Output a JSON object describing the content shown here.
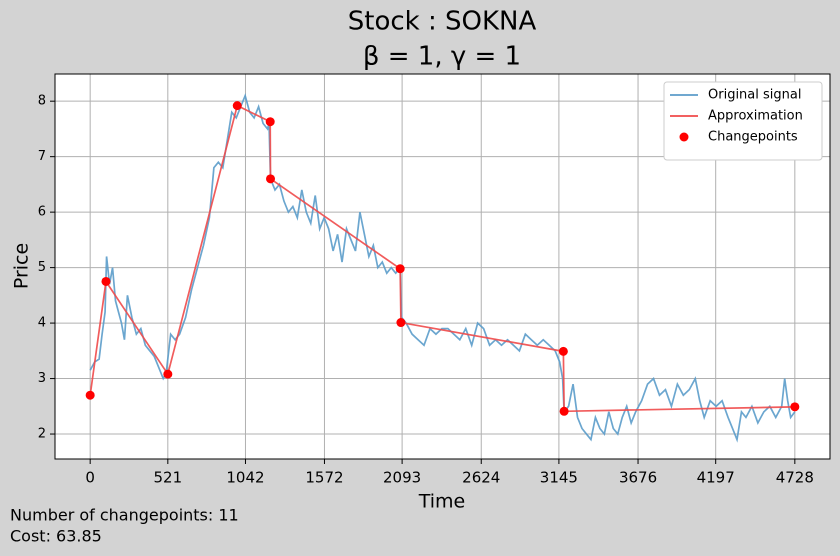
{
  "chart_data": {
    "type": "line",
    "title": "Stock : SOKNA",
    "subtitle": "β = 1, γ = 1",
    "x_label": "Time",
    "y_label": "Price",
    "annotations": [
      "Number of changepoints: 11",
      "Cost: 63.85"
    ],
    "xlim": [
      -236,
      4964
    ],
    "ylim": [
      1.55,
      8.49
    ],
    "xticks": [
      0,
      521,
      1042,
      1572,
      2093,
      2624,
      3145,
      3676,
      4197,
      4728
    ],
    "yticks": [
      2,
      3,
      4,
      5,
      6,
      7,
      8
    ],
    "grid": true,
    "legend": "upper right",
    "series": [
      {
        "name": "Original signal",
        "color": "#5b9cca",
        "style": "line",
        "x": [
          0,
          30,
          60,
          80,
          100,
          110,
          130,
          150,
          170,
          190,
          210,
          230,
          250,
          280,
          310,
          340,
          370,
          400,
          430,
          460,
          490,
          510,
          540,
          570,
          600,
          640,
          680,
          720,
          760,
          800,
          830,
          860,
          890,
          920,
          950,
          980,
          1010,
          1040,
          1070,
          1100,
          1130,
          1160,
          1190,
          1200,
          1210,
          1240,
          1270,
          1300,
          1330,
          1360,
          1390,
          1420,
          1450,
          1480,
          1510,
          1540,
          1570,
          1600,
          1630,
          1660,
          1690,
          1720,
          1750,
          1780,
          1810,
          1840,
          1870,
          1900,
          1930,
          1960,
          1990,
          2020,
          2050,
          2080,
          2090,
          2120,
          2160,
          2200,
          2240,
          2280,
          2320,
          2360,
          2400,
          2440,
          2480,
          2520,
          2560,
          2600,
          2640,
          2680,
          2720,
          2760,
          2800,
          2840,
          2880,
          2920,
          2960,
          3000,
          3040,
          3080,
          3120,
          3150,
          3170,
          3180,
          3210,
          3240,
          3270,
          3300,
          3330,
          3360,
          3390,
          3420,
          3450,
          3480,
          3510,
          3540,
          3570,
          3600,
          3630,
          3660,
          3700,
          3740,
          3780,
          3820,
          3860,
          3900,
          3940,
          3980,
          4020,
          4060,
          4090,
          4120,
          4160,
          4200,
          4240,
          4280,
          4310,
          4340,
          4370,
          4400,
          4440,
          4480,
          4520,
          4560,
          4600,
          4640,
          4660,
          4680,
          4700,
          4728
        ],
        "values": [
          3.15,
          3.3,
          3.35,
          3.8,
          4.2,
          5.2,
          4.7,
          5.0,
          4.4,
          4.2,
          4.0,
          3.7,
          4.5,
          4.1,
          3.8,
          3.9,
          3.6,
          3.5,
          3.4,
          3.2,
          3.0,
          3.1,
          3.8,
          3.7,
          3.8,
          4.1,
          4.6,
          5.0,
          5.4,
          5.9,
          6.8,
          6.9,
          6.8,
          7.3,
          7.8,
          7.7,
          7.9,
          8.1,
          7.8,
          7.7,
          7.9,
          7.6,
          7.5,
          7.6,
          6.6,
          6.4,
          6.5,
          6.2,
          6.0,
          6.1,
          5.9,
          6.4,
          6.0,
          5.8,
          6.3,
          5.7,
          5.9,
          5.7,
          5.3,
          5.6,
          5.1,
          5.7,
          5.5,
          5.3,
          6.0,
          5.6,
          5.2,
          5.4,
          5.0,
          5.1,
          4.9,
          5.0,
          4.9,
          5.0,
          4.1,
          4.0,
          3.8,
          3.7,
          3.6,
          3.9,
          3.8,
          3.9,
          3.9,
          3.8,
          3.7,
          3.9,
          3.6,
          4.0,
          3.9,
          3.6,
          3.7,
          3.6,
          3.7,
          3.6,
          3.5,
          3.8,
          3.7,
          3.6,
          3.7,
          3.6,
          3.5,
          3.3,
          3.0,
          2.4,
          2.5,
          2.9,
          2.3,
          2.1,
          2.0,
          1.9,
          2.3,
          2.1,
          2.0,
          2.4,
          2.1,
          2.0,
          2.3,
          2.5,
          2.2,
          2.4,
          2.6,
          2.9,
          3.0,
          2.7,
          2.8,
          2.5,
          2.9,
          2.7,
          2.8,
          3.0,
          2.6,
          2.3,
          2.6,
          2.5,
          2.6,
          2.3,
          2.1,
          1.9,
          2.4,
          2.3,
          2.5,
          2.2,
          2.4,
          2.5,
          2.3,
          2.5,
          3.0,
          2.6,
          2.3,
          2.4
        ]
      },
      {
        "name": "Approximation",
        "color": "#f04a4a",
        "style": "line",
        "x": [
          0,
          106,
          521,
          987,
          1208,
          1210,
          2080,
          2085,
          3175,
          3180,
          4728
        ],
        "values": [
          2.7,
          4.75,
          3.08,
          7.92,
          7.63,
          6.6,
          4.98,
          4.01,
          3.49,
          2.41,
          2.49
        ]
      },
      {
        "name": "Changepoints",
        "color": "#ff0000",
        "style": "scatter",
        "x": [
          0,
          106,
          521,
          987,
          1208,
          1210,
          2080,
          2085,
          3175,
          3180,
          4728
        ],
        "values": [
          2.7,
          4.75,
          3.08,
          7.92,
          7.63,
          6.6,
          4.98,
          4.01,
          3.49,
          2.41,
          2.49
        ]
      }
    ]
  }
}
